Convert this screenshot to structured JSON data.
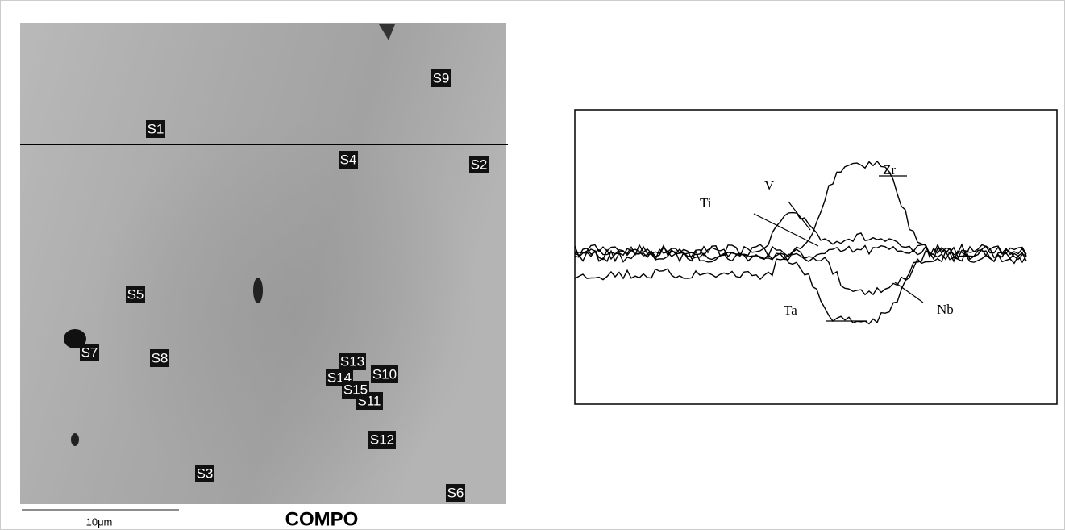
{
  "sem_image": {
    "labels": [
      "S1",
      "S2",
      "S3",
      "S4",
      "S5",
      "S6",
      "S7",
      "S8",
      "S9",
      "S10",
      "S11",
      "S12",
      "S13",
      "S14",
      "S15"
    ],
    "scale_bar": "10μm",
    "mode": "COMPO"
  },
  "line_scan": {
    "elements": [
      "Zr",
      "Ti",
      "V",
      "Ta",
      "Nb"
    ]
  }
}
